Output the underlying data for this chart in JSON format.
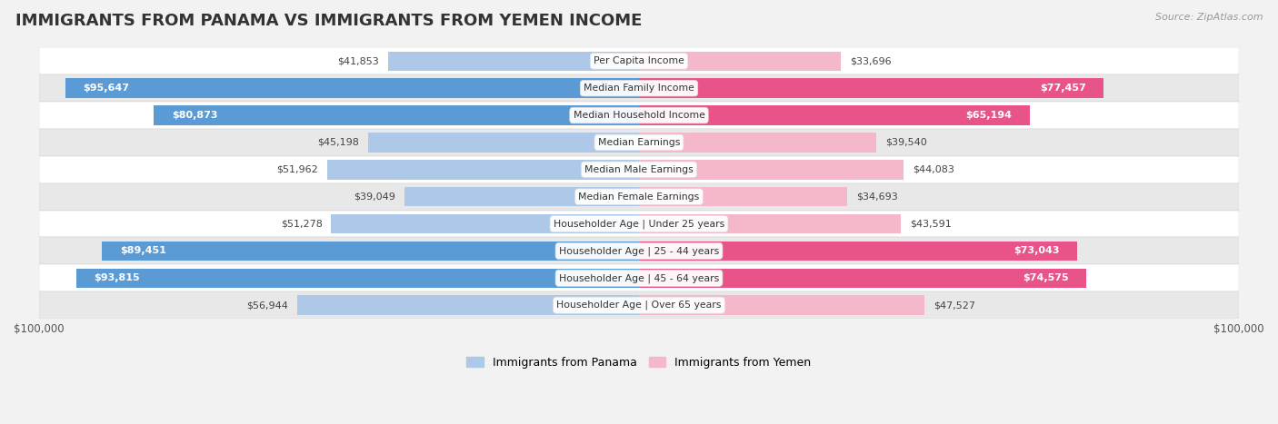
{
  "title": "IMMIGRANTS FROM PANAMA VS IMMIGRANTS FROM YEMEN INCOME",
  "source": "Source: ZipAtlas.com",
  "categories": [
    "Per Capita Income",
    "Median Family Income",
    "Median Household Income",
    "Median Earnings",
    "Median Male Earnings",
    "Median Female Earnings",
    "Householder Age | Under 25 years",
    "Householder Age | 25 - 44 years",
    "Householder Age | 45 - 64 years",
    "Householder Age | Over 65 years"
  ],
  "panama_values": [
    41853,
    95647,
    80873,
    45198,
    51962,
    39049,
    51278,
    89451,
    93815,
    56944
  ],
  "yemen_values": [
    33696,
    77457,
    65194,
    39540,
    44083,
    34693,
    43591,
    73043,
    74575,
    47527
  ],
  "panama_labels": [
    "$41,853",
    "$95,647",
    "$80,873",
    "$45,198",
    "$51,962",
    "$39,049",
    "$51,278",
    "$89,451",
    "$93,815",
    "$56,944"
  ],
  "yemen_labels": [
    "$33,696",
    "$77,457",
    "$65,194",
    "$39,540",
    "$44,083",
    "$34,693",
    "$43,591",
    "$73,043",
    "$74,575",
    "$47,527"
  ],
  "panama_color_light": "#aec9e8",
  "panama_color_dark": "#5b9bd5",
  "yemen_color_light": "#f5b8cb",
  "yemen_color_dark": "#e8548a",
  "panama_threshold": 65000,
  "yemen_threshold": 65000,
  "max_value": 100000,
  "row_colors": [
    "#f5f5f5",
    "#ebebeb"
  ],
  "legend_panama": "Immigrants from Panama",
  "legend_yemen": "Immigrants from Yemen",
  "title_fontsize": 13,
  "bar_height": 0.72
}
